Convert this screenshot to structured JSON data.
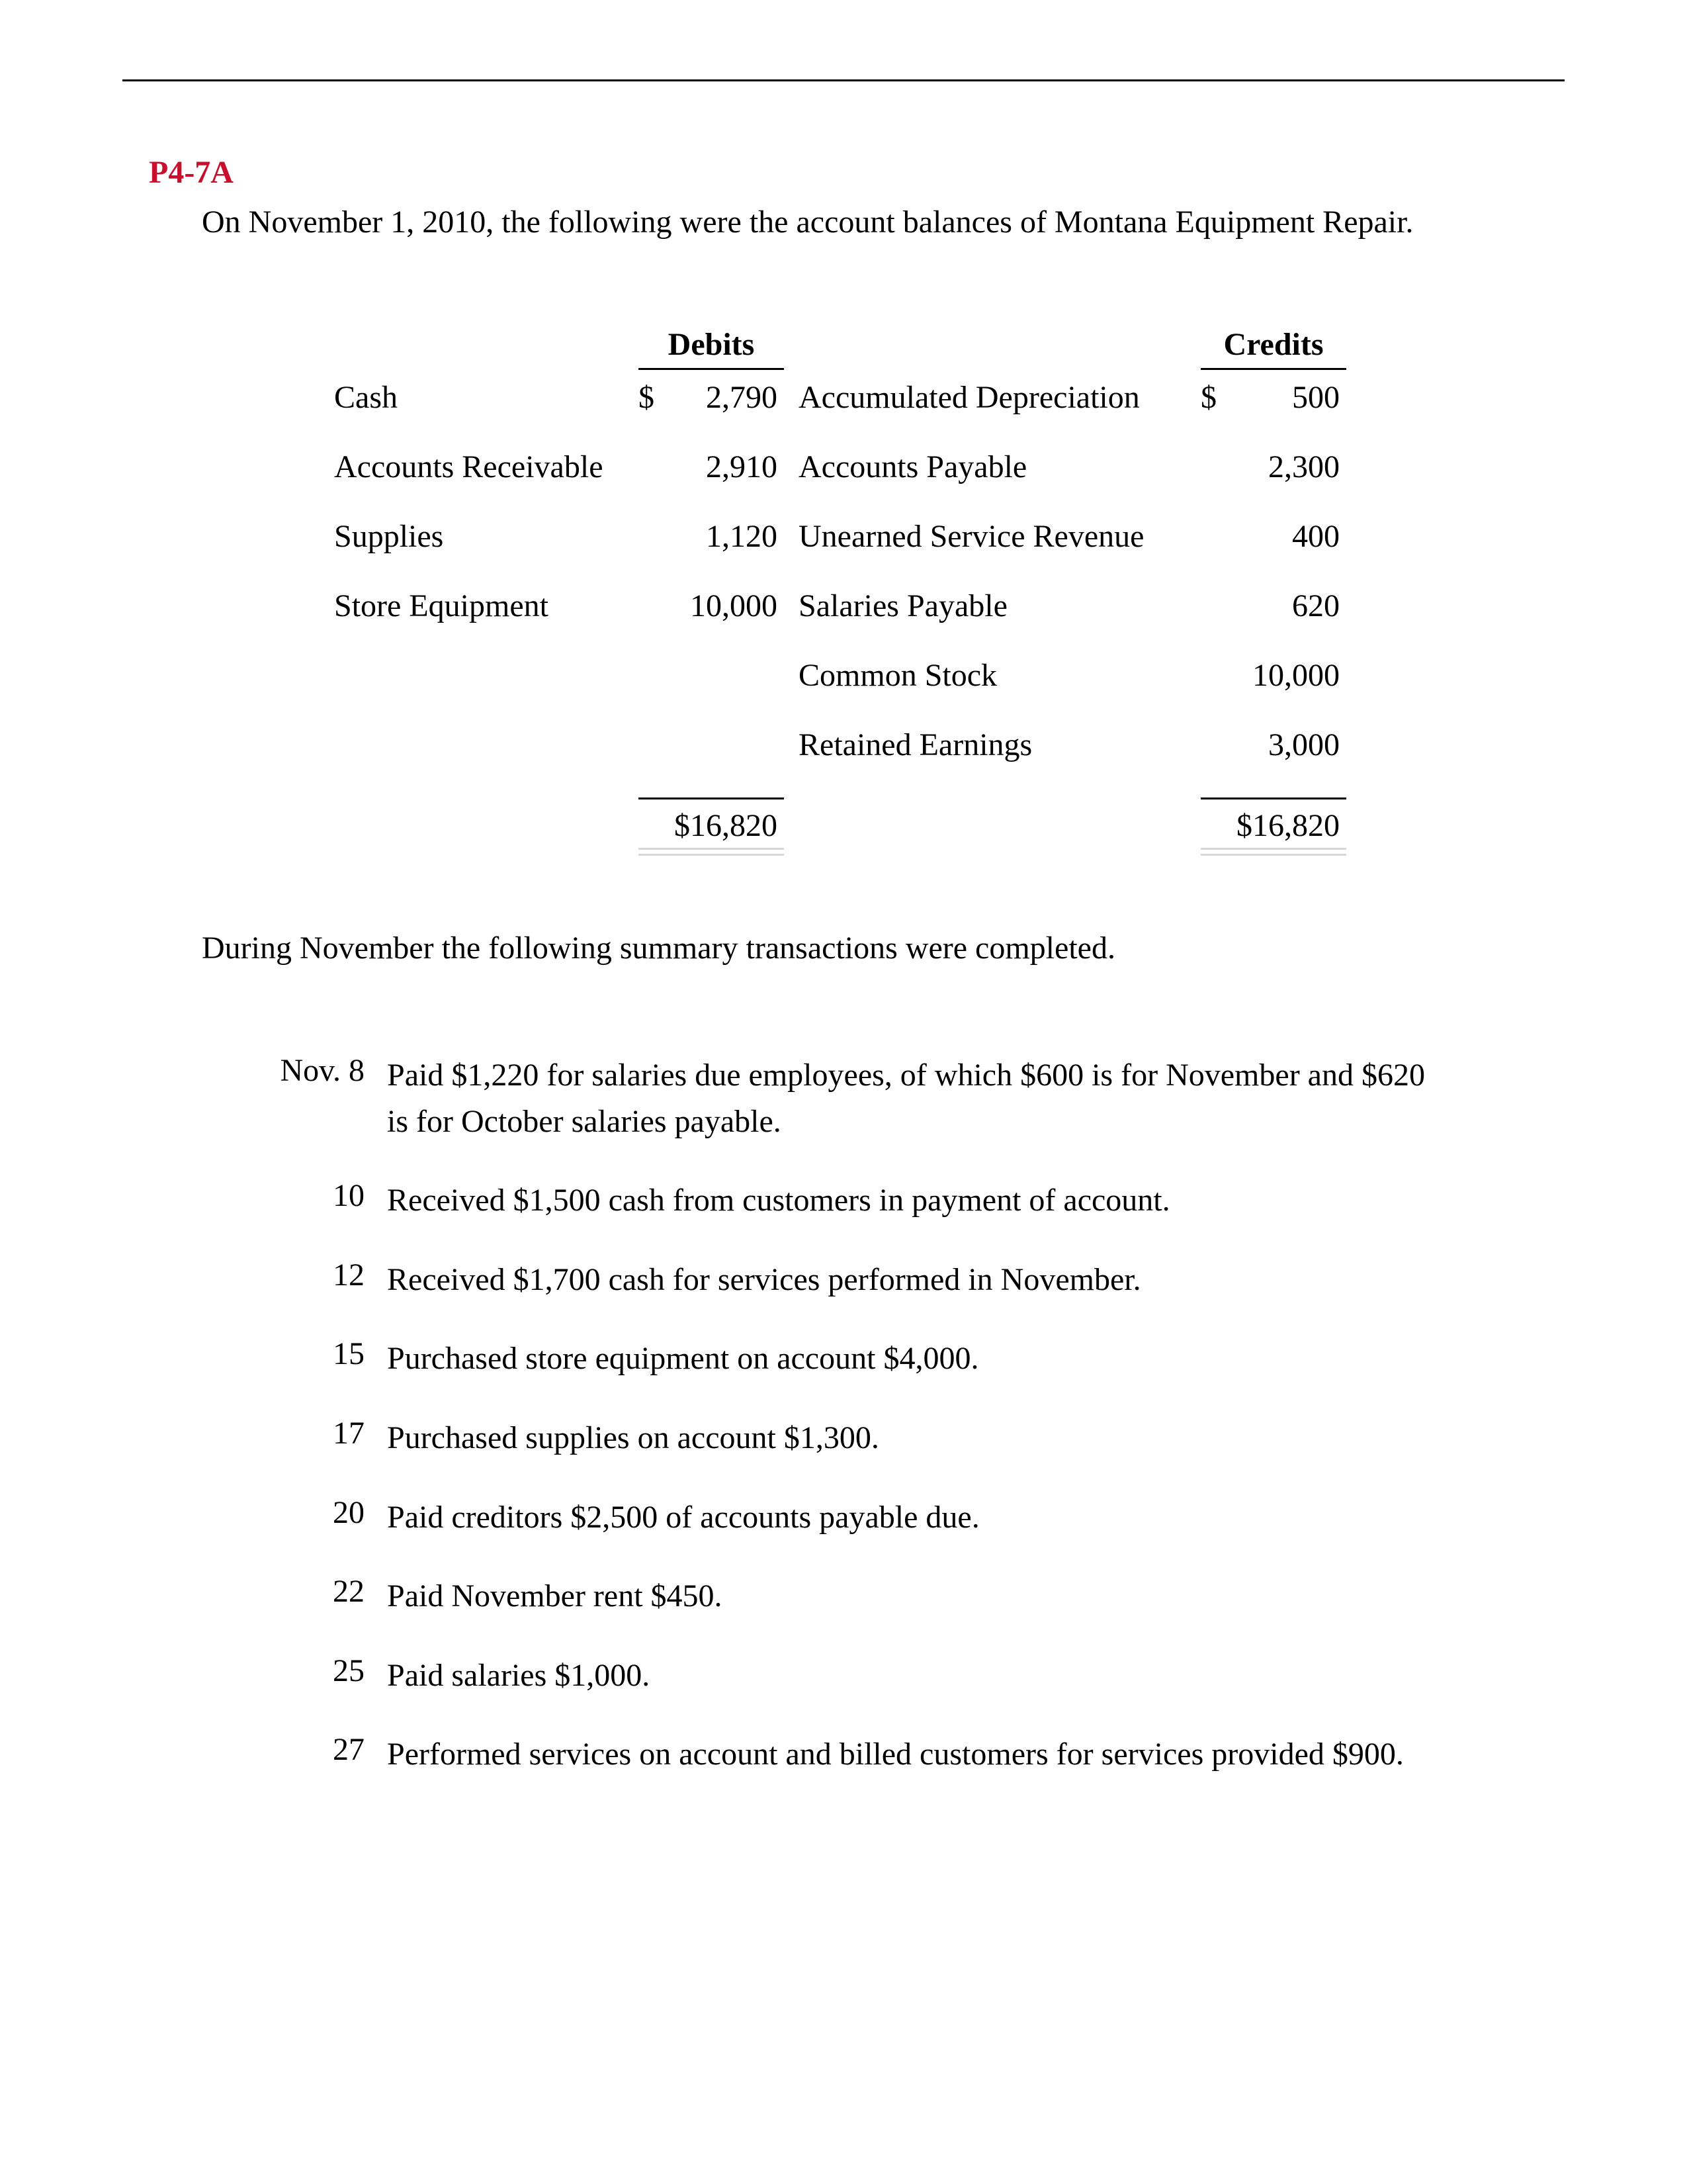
{
  "colors": {
    "heading": "#c8102e",
    "body_text": "#000000",
    "page_bg": "#ffffff",
    "rule": "#000000",
    "total_underline": "#d8d8d8"
  },
  "typography": {
    "font_family": "Times New Roman",
    "body_fontsize_pt": 36,
    "heading_fontsize_pt": 36,
    "heading_weight": "bold"
  },
  "heading": "P4-7A",
  "intro_text": "On November 1, 2010, the following were the account balances of Montana Equipment Repair.",
  "balance_table": {
    "headers": {
      "debits": "Debits",
      "credits": "Credits"
    },
    "rows": [
      {
        "debit_label": "Cash",
        "debit_amount_prefix": "$ ",
        "debit_amount": "2,790",
        "credit_label": "Accumulated Depreciation",
        "credit_amount_prefix": "$",
        "credit_amount": "500"
      },
      {
        "debit_label": "Accounts Receivable",
        "debit_amount_prefix": "",
        "debit_amount": "2,910",
        "credit_label": "Accounts Payable",
        "credit_amount_prefix": "",
        "credit_amount": "2,300"
      },
      {
        "debit_label": "Supplies",
        "debit_amount_prefix": "",
        "debit_amount": "1,120",
        "credit_label": "Unearned Service Revenue",
        "credit_amount_prefix": "",
        "credit_amount": "400"
      },
      {
        "debit_label": "Store Equipment",
        "debit_amount_prefix": "",
        "debit_amount": "10,000",
        "credit_label": "Salaries Payable",
        "credit_amount_prefix": "",
        "credit_amount": "620"
      },
      {
        "debit_label": "",
        "debit_amount_prefix": "",
        "debit_amount": "",
        "credit_label": "Common Stock",
        "credit_amount_prefix": "",
        "credit_amount": "10,000"
      },
      {
        "debit_label": "",
        "debit_amount_prefix": "",
        "debit_amount": "",
        "credit_label": "Retained Earnings",
        "credit_amount_prefix": "",
        "credit_amount": "3,000"
      }
    ],
    "totals": {
      "debit_total": "$16,820",
      "credit_total": "$16,820"
    }
  },
  "during_text": "During November the following summary transactions were completed.",
  "transactions": {
    "month_label": "Nov.",
    "rows": [
      {
        "date": "8",
        "desc": "Paid $1,220 for salaries due employees, of which $600 is for November and $620 is for October salaries payable."
      },
      {
        "date": "10",
        "desc": "Received $1,500 cash from customers in payment of account."
      },
      {
        "date": "12",
        "desc": "Received $1,700 cash for services performed in November."
      },
      {
        "date": "15",
        "desc": "Purchased store equipment on account $4,000."
      },
      {
        "date": "17",
        "desc": "Purchased supplies on account $1,300."
      },
      {
        "date": "20",
        "desc": "Paid creditors $2,500 of accounts payable due."
      },
      {
        "date": "22",
        "desc": "Paid November rent $450."
      },
      {
        "date": "25",
        "desc": "Paid salaries $1,000."
      },
      {
        "date": "27",
        "desc": "Performed services on account and billed customers for services provided $900."
      }
    ]
  }
}
